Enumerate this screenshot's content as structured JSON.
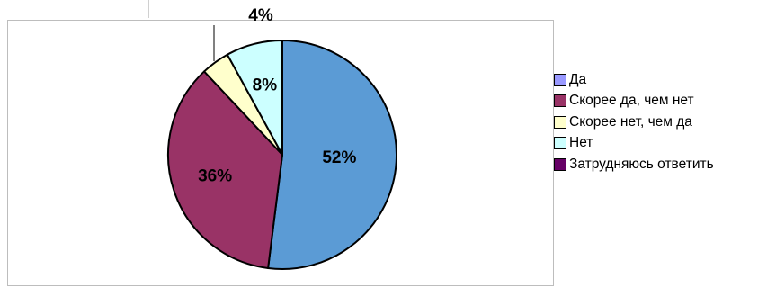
{
  "chart_data": {
    "type": "pie",
    "title": "",
    "categories": [
      "Да",
      "Скорее да, чем нет",
      "Скорее нет, чем да",
      "Нет",
      "Затрудняюсь ответить"
    ],
    "values": [
      52,
      36,
      4,
      8,
      0
    ],
    "labels": [
      "52%",
      "36%",
      "4%",
      "8%",
      ""
    ],
    "colors": [
      "#5b9bd5",
      "#993366",
      "#ffffcc",
      "#ccffff",
      "#660066"
    ],
    "legend_colors": [
      "#9999ff",
      "#993366",
      "#ffffcc",
      "#ccffff",
      "#660066"
    ],
    "legend_position": "right"
  }
}
